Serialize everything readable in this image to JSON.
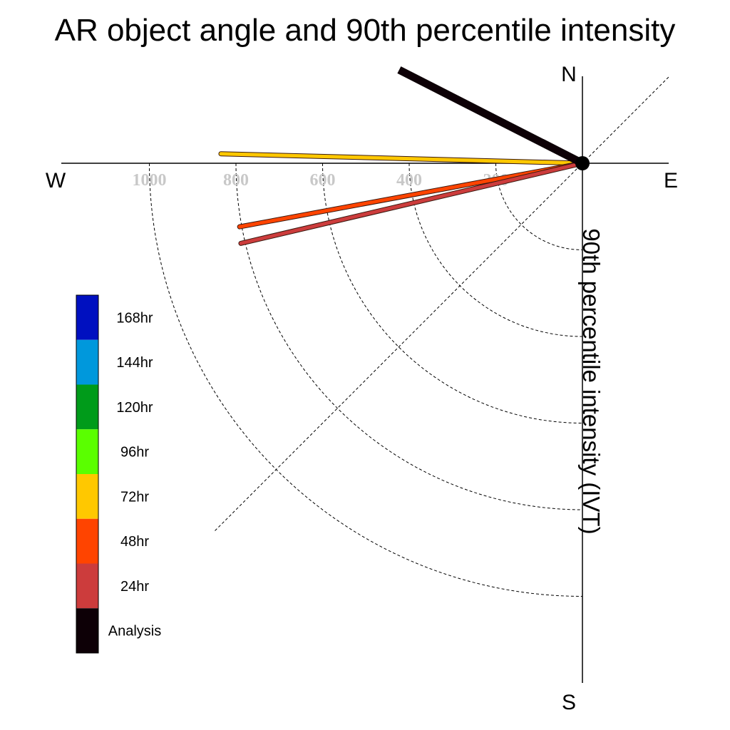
{
  "chart_data": {
    "type": "polar-vector",
    "title": "AR object angle and 90th percentile intensity",
    "ylabel": "90th percentile intensity (IVT)",
    "compass": {
      "north": "N",
      "south": "S",
      "east": "E",
      "west": "W"
    },
    "radial_ticks": [
      200,
      400,
      600,
      800,
      1000
    ],
    "radial_tick_labels": [
      "200",
      "400",
      "600",
      "800",
      "1000"
    ],
    "radial_max": 1200,
    "grid": true,
    "legend_placement": "left",
    "legend": [
      {
        "label": "168hr",
        "color": "#0010c0"
      },
      {
        "label": "144hr",
        "color": "#0098dc"
      },
      {
        "label": "120hr",
        "color": "#009b1a"
      },
      {
        "label": "96hr",
        "color": "#5aff00"
      },
      {
        "label": "72hr",
        "color": "#ffc800"
      },
      {
        "label": "48hr",
        "color": "#ff4400"
      },
      {
        "label": "24hr",
        "color": "#cc3c3c"
      },
      {
        "label": "Analysis",
        "color": "#0d0006"
      }
    ],
    "series": [
      {
        "name": "Analysis",
        "angle_deg": 153,
        "intensity": 475,
        "color": "#0d0006",
        "width": 11
      },
      {
        "name": "72hr",
        "angle_deg": 178.5,
        "intensity": 835,
        "color": "#ffc800",
        "width": 5
      },
      {
        "name": "48hr",
        "angle_deg": 190.5,
        "intensity": 805,
        "color": "#ff4400",
        "width": 5
      },
      {
        "name": "24hr",
        "angle_deg": 193.2,
        "intensity": 810,
        "color": "#cc3c3c",
        "width": 5
      }
    ]
  }
}
